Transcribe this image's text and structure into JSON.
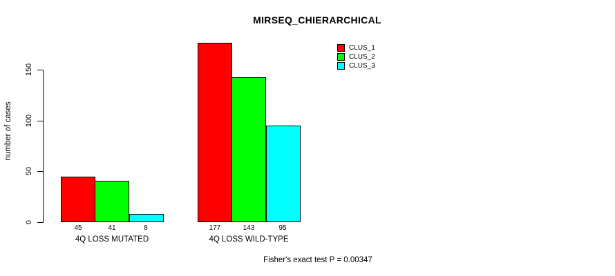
{
  "page": {
    "background": "#ffffff",
    "text_color": "#000000"
  },
  "chart_data": {
    "type": "bar",
    "title": "MIRSEQ_CHIERARCHICAL",
    "xlabel": "",
    "ylabel": "number of cases",
    "ylim": [
      0,
      180
    ],
    "yticks": [
      0,
      50,
      100,
      150
    ],
    "grid": false,
    "legend_position": "top-right",
    "bar_border_color": "#000000",
    "categories": [
      "4Q LOSS MUTATED",
      "4Q LOSS WILD-TYPE"
    ],
    "series": [
      {
        "name": "CLUS_1",
        "color": "#ff0000",
        "values": [
          45,
          177
        ]
      },
      {
        "name": "CLUS_2",
        "color": "#00ff00",
        "values": [
          41,
          143
        ]
      },
      {
        "name": "CLUS_3",
        "color": "#00ffff",
        "values": [
          8,
          95
        ]
      }
    ],
    "bar_value_labels_shown": true,
    "footnote": "Fisher's exact test P = 0.00347"
  }
}
